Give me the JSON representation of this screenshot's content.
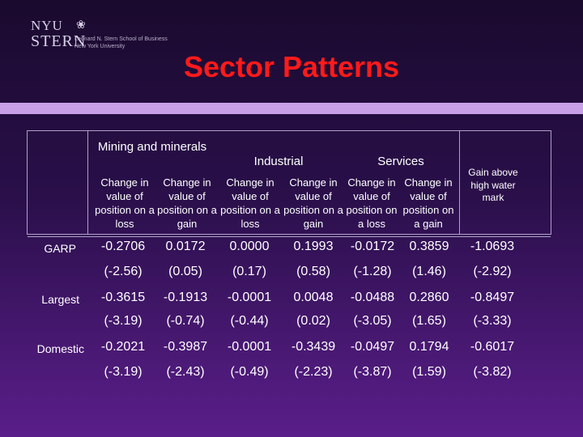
{
  "logo": {
    "line1": "NYU",
    "line2": "STERN",
    "sub1": "Leonard N. Stern School of Business",
    "sub2": "New York University"
  },
  "title": "Sector Patterns",
  "table": {
    "groups": [
      {
        "label": "Mining and minerals"
      },
      {
        "label": "Industrial"
      },
      {
        "label": "Services"
      }
    ],
    "subheaders": [
      "Change in value of position on a loss",
      "Change in value of position on a gain",
      "Change in value of position on a loss",
      "Change in value of position on a gain",
      "Change in value of position on a loss",
      "Change in value of position on a gain"
    ],
    "last_header": "Gain above high water mark",
    "rows": [
      {
        "label": "GARP",
        "values": [
          "-0.2706",
          "0.0172",
          "0.0000",
          "0.1993",
          "-0.0172",
          "0.3859",
          "-1.0693"
        ],
        "tstats": [
          "(-2.56)",
          "(0.05)",
          "(0.17)",
          "(0.58)",
          "(-1.28)",
          "(1.46)",
          "(-2.92)"
        ]
      },
      {
        "label": "Largest",
        "values": [
          "-0.3615",
          "-0.1913",
          "-0.0001",
          "0.0048",
          "-0.0488",
          "0.2860",
          "-0.8497"
        ],
        "tstats": [
          "(-3.19)",
          "(-0.74)",
          "(-0.44)",
          "(0.02)",
          "(-3.05)",
          "(1.65)",
          "(-3.33)"
        ]
      },
      {
        "label": "Domestic",
        "values": [
          "-0.2021",
          "-0.3987",
          "-0.0001",
          "-0.3439",
          "-0.0497",
          "0.1794",
          "-0.6017"
        ],
        "tstats": [
          "(-3.19)",
          "(-2.43)",
          "(-0.49)",
          "(-2.23)",
          "(-3.87)",
          "(1.59)",
          "(-3.82)"
        ]
      }
    ]
  }
}
